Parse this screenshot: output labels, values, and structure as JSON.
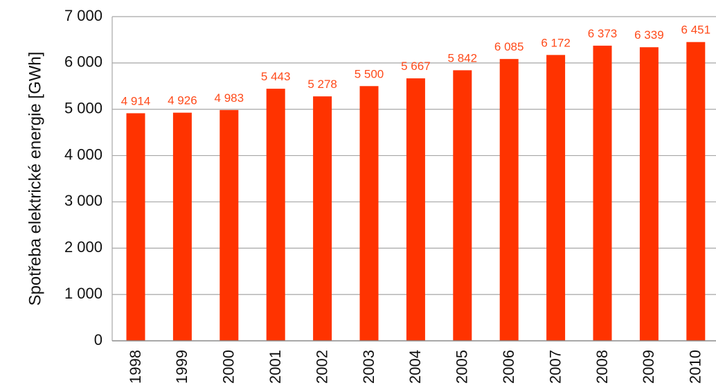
{
  "chart_data": {
    "type": "bar",
    "title": "",
    "xlabel": "",
    "ylabel": "Spotřeba elektrické energie  [GWh]",
    "ylim": [
      0,
      7000
    ],
    "yticks": [
      0,
      1000,
      2000,
      3000,
      4000,
      5000,
      6000,
      7000
    ],
    "ytick_labels": [
      "0",
      "1 000",
      "2 000",
      "3 000",
      "4 000",
      "5 000",
      "6 000",
      "7 000"
    ],
    "grid": true,
    "legend": "none",
    "bar_color": "#ff3300",
    "label_color": "#ff4a1a",
    "categories": [
      "1998",
      "1999",
      "2000",
      "2001",
      "2002",
      "2003",
      "2004",
      "2005",
      "2006",
      "2007",
      "2008",
      "2009",
      "2010"
    ],
    "values": [
      4914,
      4926,
      4983,
      5443,
      5278,
      5500,
      5667,
      5842,
      6085,
      6172,
      6373,
      6339,
      6451
    ],
    "value_labels": [
      "4 914",
      "4 926",
      "4 983",
      "5 443",
      "5 278",
      "5 500",
      "5 667",
      "5 842",
      "6 085",
      "6 172",
      "6 373",
      "6 339",
      "6 451"
    ]
  }
}
